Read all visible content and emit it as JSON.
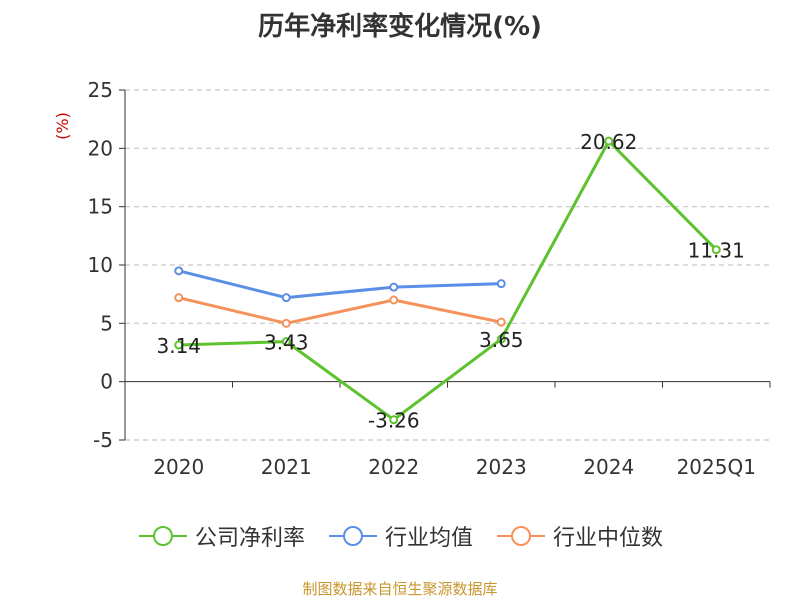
{
  "chart_data": {
    "type": "line",
    "title": "历年净利率变化情况(%)",
    "ylabel": "(%)",
    "categories": [
      "2020",
      "2021",
      "2022",
      "2023",
      "2024",
      "2025Q1"
    ],
    "ylim": [
      -5,
      25
    ],
    "yticks": [
      -5,
      0,
      5,
      10,
      15,
      20,
      25
    ],
    "grid": true,
    "legend_position": "bottom",
    "series": [
      {
        "name": "公司净利率",
        "color": "#5cc22e",
        "values": [
          3.14,
          3.43,
          -3.26,
          3.65,
          20.62,
          11.31
        ],
        "labels": [
          "3.14",
          "3.43",
          "-3.26",
          "3.65",
          "20.62",
          "11.31"
        ]
      },
      {
        "name": "行业均值",
        "color": "#5b8ee6",
        "values": [
          9.5,
          7.2,
          8.1,
          8.4,
          null,
          null
        ]
      },
      {
        "name": "行业中位数",
        "color": "#f5925b",
        "values": [
          7.2,
          5.0,
          7.0,
          5.1,
          null,
          null
        ]
      }
    ]
  },
  "footer": "制图数据来自恒生聚源数据库"
}
